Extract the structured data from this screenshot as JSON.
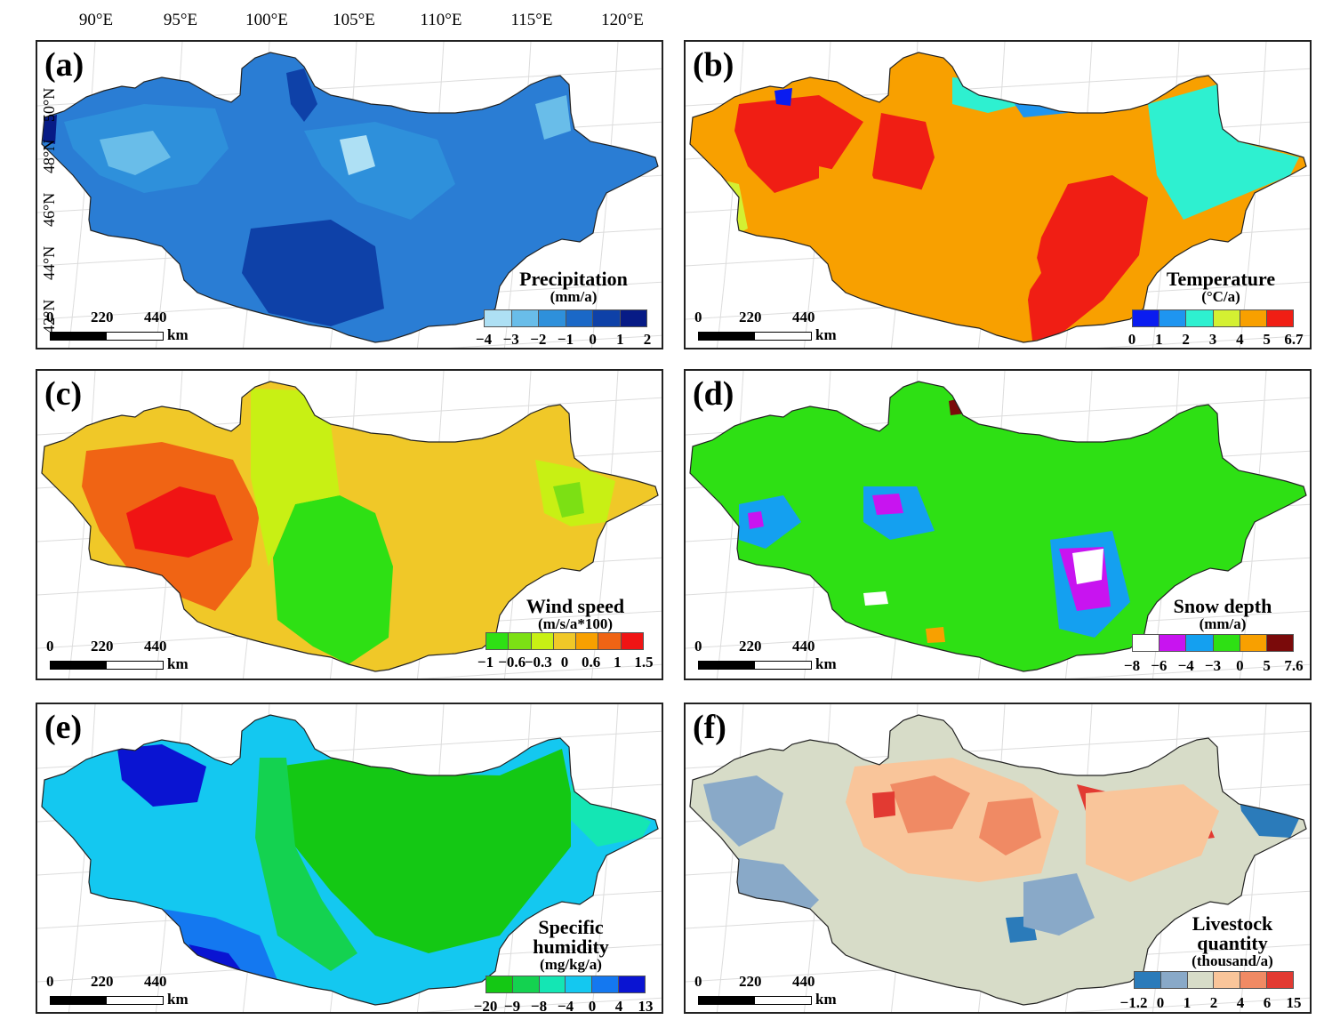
{
  "longitude_labels": [
    "90°E",
    "95°E",
    "100°E",
    "105°E",
    "110°E",
    "115°E",
    "120°E"
  ],
  "latitude_labels": [
    "50°N",
    "48°N",
    "46°N",
    "44°N",
    "42°N"
  ],
  "scale": {
    "ticks": [
      "0",
      "220",
      "440"
    ],
    "unit": "km"
  },
  "panels": [
    {
      "id": "a",
      "label": "(a)",
      "title": "Precipitation",
      "unit": "(mm/a)",
      "colors": [
        "#aee0f4",
        "#69bde9",
        "#2e90db",
        "#1a68c7",
        "#0e41a8",
        "#071b86"
      ],
      "ticks": [
        "−4",
        "−3",
        "−2",
        "−1",
        "0",
        "1",
        "2"
      ],
      "base_color": "#2a7dd4"
    },
    {
      "id": "b",
      "label": "(b)",
      "title": "Temperature",
      "unit": "(°C/a)",
      "colors": [
        "#0a1cf0",
        "#1e95f0",
        "#2ef0d0",
        "#d4f032",
        "#f8a000",
        "#f01e14"
      ],
      "ticks": [
        "0",
        "1",
        "2",
        "3",
        "4",
        "5",
        "6.7"
      ],
      "base_color": "#f8a000"
    },
    {
      "id": "c",
      "label": "(c)",
      "title": "Wind speed",
      "unit": "(m/s/a*100)",
      "colors": [
        "#2ee014",
        "#7ce014",
        "#c8f014",
        "#f0c828",
        "#f8a000",
        "#f06414",
        "#f01414"
      ],
      "ticks": [
        "−1",
        "−0.6",
        "−0.3",
        "0",
        "0.6",
        "1",
        "1.5"
      ],
      "base_color": "#f0c828"
    },
    {
      "id": "d",
      "label": "(d)",
      "title": "Snow depth",
      "unit": "(mm/a)",
      "colors": [
        "#ffffff",
        "#c814f0",
        "#14a0f0",
        "#2ee014",
        "#f8a000",
        "#7a0a0a"
      ],
      "ticks": [
        "−8",
        "−6",
        "−4",
        "−3",
        "0",
        "5",
        "7.6"
      ],
      "base_color": "#2ee014"
    },
    {
      "id": "e",
      "label": "(e)",
      "title": "Specific humidity",
      "unit": "(mg/kg/a)",
      "colors": [
        "#14c814",
        "#14d250",
        "#14e6b4",
        "#14c8f0",
        "#1478f0",
        "#0a14d2"
      ],
      "ticks": [
        "−20",
        "−9",
        "−8",
        "−4",
        "0",
        "4",
        "13"
      ],
      "base_color": "#14c8f0"
    },
    {
      "id": "f",
      "label": "(f)",
      "title": "Livestock quantity",
      "unit": "(thousand/a)",
      "colors": [
        "#2b7bba",
        "#89a9c8",
        "#d7dcc8",
        "#f9c59a",
        "#f08a64",
        "#e23a32"
      ],
      "ticks": [
        "−1.2",
        "0",
        "1",
        "2",
        "4",
        "6",
        "15"
      ],
      "base_color": "#d7dcc8"
    }
  ]
}
